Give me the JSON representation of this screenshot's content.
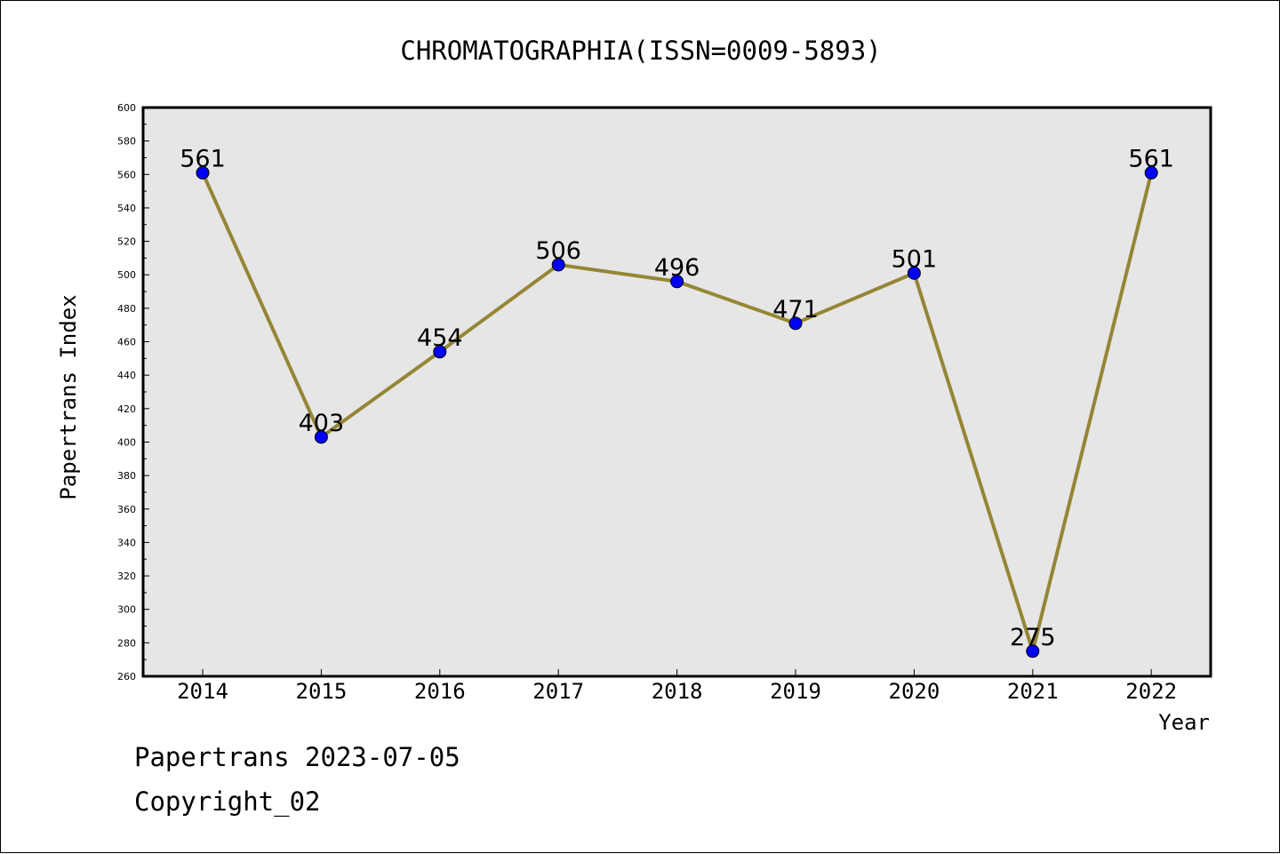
{
  "chart_data": {
    "type": "line",
    "title": "CHROMATOGRAPHIA(ISSN=0009-5893)",
    "xlabel": "Year",
    "ylabel": "Papertrans Index",
    "x": [
      "2014",
      "2015",
      "2016",
      "2017",
      "2018",
      "2019",
      "2020",
      "2021",
      "2022"
    ],
    "series": [
      {
        "values": [
          561,
          403,
          454,
          506,
          496,
          471,
          501,
          275,
          561
        ]
      }
    ],
    "ylim": [
      260,
      600
    ],
    "yticks": [
      260,
      280,
      300,
      320,
      340,
      360,
      380,
      400,
      420,
      440,
      460,
      480,
      500,
      520,
      540,
      560,
      580,
      600
    ],
    "grid": false,
    "data_labels": true,
    "colors": {
      "line": "#948635",
      "marker": "#0000ff",
      "plot_background": "#e6e6e6"
    }
  },
  "footer": {
    "line1": "Papertrans 2023-07-05",
    "line2": "Copyright_02"
  }
}
